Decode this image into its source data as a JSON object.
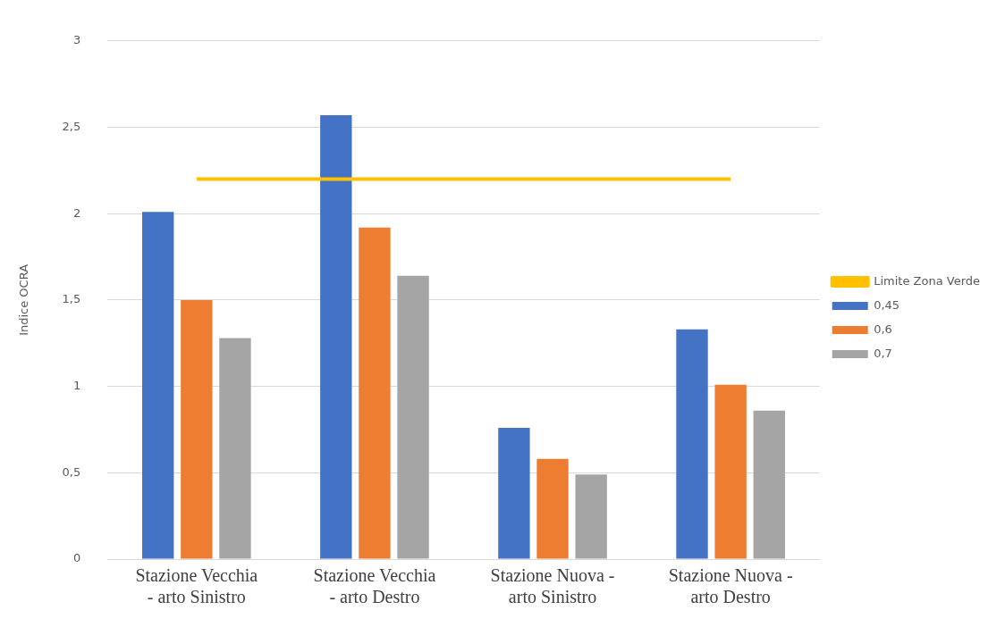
{
  "chart_data": {
    "type": "bar",
    "ylabel": "Indice OCRA",
    "categories": [
      "Stazione Vecchia - arto Sinistro",
      "Stazione Vecchia - arto Destro",
      "Stazione Nuova - arto Sinistro",
      "Stazione Nuova - arto Destro"
    ],
    "series": [
      {
        "name": "0,45",
        "color": "#4472c4",
        "values": [
          2.01,
          2.57,
          0.76,
          1.33
        ]
      },
      {
        "name": "0,6",
        "color": "#ed7d31",
        "values": [
          1.5,
          1.92,
          0.58,
          1.01
        ]
      },
      {
        "name": "0,7",
        "color": "#a5a5a5",
        "values": [
          1.28,
          1.64,
          0.49,
          0.86
        ]
      },
      {
        "name": "Limite Zona Verde",
        "type": "line",
        "color": "#ffc000",
        "values": [
          2.2,
          2.2,
          2.2,
          2.2
        ],
        "marker": "none"
      }
    ],
    "ylim": [
      0,
      3
    ],
    "yticks": [
      0,
      {
        "value": 0.5,
        "label": "0,5"
      },
      1,
      {
        "value": 1.5,
        "label": "1,5"
      },
      2,
      {
        "value": 2.5,
        "label": "2,5"
      },
      3
    ],
    "grid": "y",
    "legend": "right"
  }
}
